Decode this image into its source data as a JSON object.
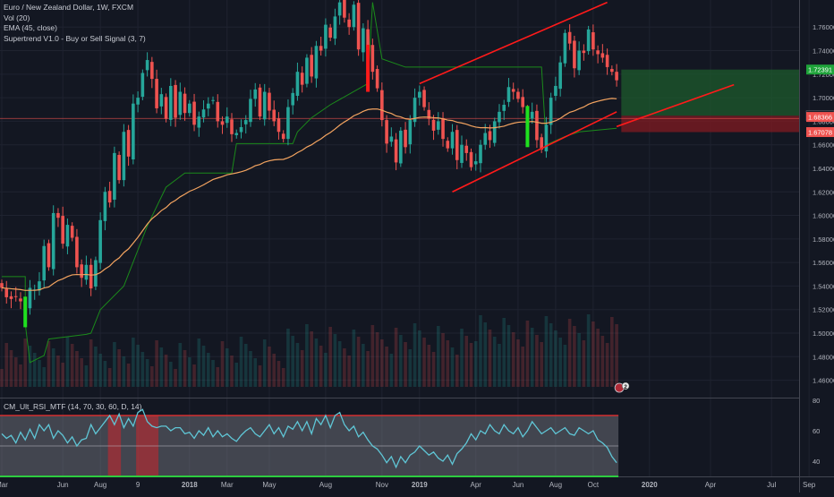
{
  "legend": {
    "symbol": "Euro / New Zealand Dollar, 1W, FXCM",
    "vol": "Vol (20)",
    "ema": "EMA (45, close)",
    "supertrend": "Supertrend V1.0 - Buy or Sell Signal (3, 7)",
    "rsi": "CM_Ult_RSI_MTF (14, 70, 30, 60, D, 14)"
  },
  "colors": {
    "background": "#131722",
    "up": "#26a69a",
    "down": "#ef5350",
    "ema": "#f4a460",
    "supertrend": "#1b8a1b",
    "channel": "#ff1a1a",
    "rsi_line": "#5fc6d6",
    "rsi_band": "#7d7f87",
    "long_zone": "#1e5b2c",
    "stop_zone": "#7a1a22"
  },
  "price_badges": [
    {
      "label": "1.72391",
      "value": 1.72391,
      "color": "#1fa33a"
    },
    {
      "label": "1.68470",
      "value": 1.6847,
      "color": "#1b1f2a"
    },
    {
      "label": "1.68366",
      "value": 1.68366,
      "color": "#ef5350"
    },
    {
      "label": "1.67078",
      "value": 1.67078,
      "color": "#ef5350"
    }
  ],
  "position_badge": {
    "label": "2"
  },
  "chart_data": {
    "type": "candlestick",
    "title": "Euro / New Zealand Dollar, 1W, FXCM",
    "ylim": [
      1.446,
      1.783
    ],
    "y_ticks": [
      1.46,
      1.48,
      1.5,
      1.52,
      1.54,
      1.56,
      1.58,
      1.6,
      1.62,
      1.64,
      1.66,
      1.68,
      1.7,
      1.72,
      1.74,
      1.76
    ],
    "y_tick_labels": [
      "1.46000",
      "1.48000",
      "1.50000",
      "1.52000",
      "1.54000",
      "1.56000",
      "1.58000",
      "1.60000",
      "1.62000",
      "1.64000",
      "1.66000",
      "1.68000",
      "1.70000",
      "1.72000",
      "1.74000",
      "1.76000"
    ],
    "x_ticks": [
      {
        "label": "Mar",
        "bar": 0
      },
      {
        "label": "Jun",
        "bar": 13
      },
      {
        "label": "Aug",
        "bar": 21
      },
      {
        "label": "9",
        "bar": 29
      },
      {
        "label": "2018",
        "bar": 40
      },
      {
        "label": "Mar",
        "bar": 48
      },
      {
        "label": "May",
        "bar": 57
      },
      {
        "label": "Aug",
        "bar": 69
      },
      {
        "label": "Nov",
        "bar": 81
      },
      {
        "label": "2019",
        "bar": 89
      },
      {
        "label": "Apr",
        "bar": 101
      },
      {
        "label": "Jun",
        "bar": 110
      },
      {
        "label": "Aug",
        "bar": 118
      },
      {
        "label": "Oct",
        "bar": 126
      },
      {
        "label": "2020",
        "bar": 138
      },
      {
        "label": "Apr",
        "bar": 151
      },
      {
        "label": "Jul",
        "bar": 164
      },
      {
        "label": "Sep",
        "bar": 172
      }
    ],
    "bar_count": 182,
    "closes": [
      1.5385,
      1.5305,
      1.529,
      1.531,
      1.527,
      1.5195,
      1.5385,
      1.537,
      1.544,
      1.574,
      1.556,
      1.602,
      1.598,
      1.576,
      1.592,
      1.581,
      1.556,
      1.547,
      1.558,
      1.538,
      1.562,
      1.596,
      1.62,
      1.611,
      1.653,
      1.63,
      1.671,
      1.65,
      1.695,
      1.7,
      1.721,
      1.732,
      1.716,
      1.691,
      1.703,
      1.682,
      1.71,
      1.683,
      1.705,
      1.687,
      1.695,
      1.677,
      1.684,
      1.69,
      1.695,
      1.698,
      1.68,
      1.677,
      1.684,
      1.669,
      1.67,
      1.675,
      1.681,
      1.699,
      1.707,
      1.684,
      1.705,
      1.689,
      1.68,
      1.671,
      1.665,
      1.692,
      1.704,
      1.722,
      1.711,
      1.734,
      1.718,
      1.744,
      1.74,
      1.762,
      1.751,
      1.769,
      1.781,
      1.768,
      1.76,
      1.779,
      1.741,
      1.759,
      1.744,
      1.722,
      1.708,
      1.681,
      1.661,
      1.667,
      1.645,
      1.672,
      1.658,
      1.681,
      1.7,
      1.705,
      1.692,
      1.682,
      1.672,
      1.68,
      1.665,
      1.657,
      1.671,
      1.647,
      1.66,
      1.653,
      1.641,
      1.646,
      1.66,
      1.67,
      1.664,
      1.68,
      1.688,
      1.694,
      1.709,
      1.705,
      1.699,
      1.692,
      1.683,
      1.688,
      1.664,
      1.656,
      1.677,
      1.7,
      1.71,
      1.73,
      1.755,
      1.746,
      1.725,
      1.74,
      1.738,
      1.758,
      1.741,
      1.737,
      1.734,
      1.726,
      1.722,
      1.7148
    ],
    "ema45": [
      1.5385,
      1.5381,
      1.5377,
      1.5374,
      1.537,
      1.5363,
      1.5364,
      1.5364,
      1.5368,
      1.5384,
      1.5392,
      1.5421,
      1.5447,
      1.5461,
      1.5481,
      1.5495,
      1.5498,
      1.5496,
      1.5499,
      1.5493,
      1.5496,
      1.5514,
      1.5545,
      1.557,
      1.5611,
      1.5639,
      1.5684,
      1.5716,
      1.5765,
      1.5814,
      1.587,
      1.5926,
      1.5972,
      1.6004,
      1.6041,
      1.6067,
      1.6105,
      1.6128,
      1.6158,
      1.618,
      1.6205,
      1.6221,
      1.624,
      1.626,
      1.6283,
      1.6305,
      1.6318,
      1.633,
      1.6345,
      1.6353,
      1.6361,
      1.6371,
      1.6383,
      1.6401,
      1.6422,
      1.6433,
      1.6453,
      1.6464,
      1.6472,
      1.6475,
      1.6476,
      1.649,
      1.6508,
      1.6534,
      1.6554,
      1.6581,
      1.66,
      1.6627,
      1.665,
      1.668,
      1.6704,
      1.6734,
      1.6767,
      1.6794,
      1.6818,
      1.6847,
      1.6863,
      1.6884,
      1.6899,
      1.6904,
      1.6904,
      1.6894,
      1.6878,
      1.6866,
      1.6845,
      1.6837,
      1.6821,
      1.6816,
      1.6824,
      1.6833,
      1.6836,
      1.6835,
      1.683,
      1.6828,
      1.682,
      1.681,
      1.6806,
      1.6792,
      1.6785,
      1.6775,
      1.6761,
      1.675,
      1.6745,
      1.6746,
      1.6743,
      1.6745,
      1.6751,
      1.6758,
      1.6772,
      1.6783,
      1.6791,
      1.6794,
      1.6794,
      1.6798,
      1.6792,
      1.6783,
      1.6783,
      1.6791,
      1.6804,
      1.6824,
      1.6852,
      1.6876,
      1.6888,
      1.6906,
      1.6921,
      1.6944,
      1.6959,
      1.697,
      1.698,
      1.6988,
      1.6994,
      1.6991
    ]
  },
  "channel_lines": [
    {
      "name": "upper",
      "from": {
        "bar": 89,
        "price": 1.712
      },
      "to": {
        "bar": 129,
        "price": 1.781
      }
    },
    {
      "name": "lower",
      "from": {
        "bar": 96,
        "price": 1.62
      },
      "to": {
        "bar": 131,
        "price": 1.688
      }
    },
    {
      "name": "projection",
      "from": {
        "bar": 131,
        "price": 1.6755
      },
      "to": {
        "bar": 156,
        "price": 1.711
      }
    }
  ],
  "supertrend": [
    {
      "bar": 0,
      "price": 1.548
    },
    {
      "bar": 5,
      "price": 1.548
    },
    {
      "bar": 5,
      "price": 1.508
    },
    {
      "bar": 6,
      "price": 1.475
    },
    {
      "bar": 9,
      "price": 1.481
    },
    {
      "bar": 10,
      "price": 1.495
    },
    {
      "bar": 18,
      "price": 1.499
    },
    {
      "bar": 19,
      "price": 1.5
    },
    {
      "bar": 21,
      "price": 1.52
    },
    {
      "bar": 26,
      "price": 1.54
    },
    {
      "bar": 31,
      "price": 1.591
    },
    {
      "bar": 35,
      "price": 1.624
    },
    {
      "bar": 39,
      "price": 1.636
    },
    {
      "bar": 49,
      "price": 1.636
    },
    {
      "bar": 50,
      "price": 1.661
    },
    {
      "bar": 62,
      "price": 1.661
    },
    {
      "bar": 63,
      "price": 1.671
    },
    {
      "bar": 66,
      "price": 1.683
    },
    {
      "bar": 70,
      "price": 1.694
    },
    {
      "bar": 74,
      "price": 1.703
    },
    {
      "bar": 78,
      "price": 1.712
    },
    {
      "bar": 79,
      "price": 1.781
    },
    {
      "bar": 81,
      "price": 1.733
    },
    {
      "bar": 86,
      "price": 1.726
    },
    {
      "bar": 96,
      "price": 1.726
    },
    {
      "bar": 115,
      "price": 1.726
    },
    {
      "bar": 116,
      "price": 1.66
    },
    {
      "bar": 120,
      "price": 1.667
    },
    {
      "bar": 123,
      "price": 1.671
    },
    {
      "bar": 131,
      "price": 1.674
    }
  ],
  "signal_markers": [
    {
      "bar": 5,
      "low": 1.505,
      "high": 1.531,
      "color": "#1fe01f"
    },
    {
      "bar": 78,
      "low": 1.705,
      "high": 1.745,
      "color": "#ff1a1a"
    },
    {
      "bar": 112,
      "low": 1.658,
      "high": 1.693,
      "color": "#1fe01f"
    }
  ],
  "trade_zones": {
    "start_bar": 132,
    "end_bar": 182,
    "entry": 1.6847,
    "target": 1.72391,
    "stop": 1.67078
  },
  "rsi": {
    "y_ticks": [
      40,
      60,
      80
    ],
    "ylim": [
      30,
      80
    ],
    "upper": 70,
    "mid": 50,
    "lower": 30,
    "band_end_bar": 131,
    "overbought_bars": [
      [
        23,
        25
      ],
      [
        29,
        33
      ]
    ],
    "values": [
      58,
      55,
      57,
      52,
      59,
      54,
      61,
      55,
      64,
      60,
      64,
      55,
      60,
      57,
      52,
      56,
      50,
      54,
      55,
      64,
      58,
      62,
      66,
      70,
      64,
      71,
      62,
      68,
      63,
      72,
      74,
      66,
      63,
      62,
      63,
      63,
      60,
      62,
      62,
      58,
      59,
      55,
      60,
      57,
      62,
      56,
      60,
      56,
      58,
      55,
      53,
      57,
      60,
      62,
      58,
      56,
      60,
      64,
      58,
      62,
      56,
      63,
      61,
      66,
      60,
      66,
      58,
      68,
      64,
      70,
      62,
      70,
      72,
      64,
      60,
      63,
      56,
      59,
      54,
      50,
      48,
      44,
      39,
      43,
      36,
      43,
      39,
      44,
      46,
      50,
      47,
      44,
      46,
      42,
      40,
      44,
      38,
      45,
      48,
      52,
      58,
      54,
      60,
      58,
      64,
      60,
      58,
      64,
      60,
      58,
      62,
      56,
      60,
      66,
      62,
      58,
      60,
      62,
      58,
      60,
      62,
      58,
      57,
      62,
      60,
      58,
      60,
      54,
      52,
      49,
      43,
      39
    ]
  }
}
